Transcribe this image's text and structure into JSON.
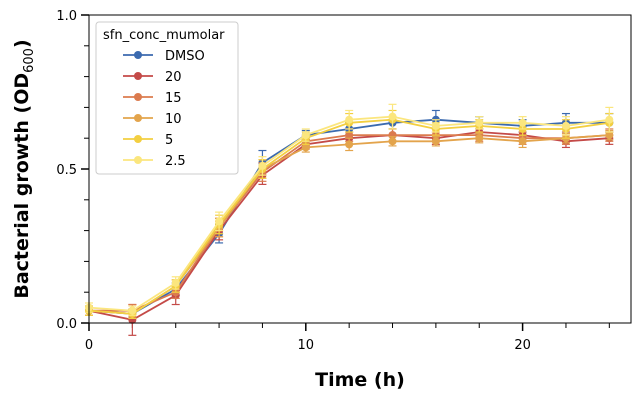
{
  "chart_data": {
    "type": "line",
    "xlabel": "Time (h)",
    "ylabel_main": "Bacterial growth (OD",
    "ylabel_sub": "600",
    "ylabel_close": ")",
    "xlim": [
      0,
      25
    ],
    "ylim": [
      0,
      1
    ],
    "x_major_ticks": [
      0,
      10,
      20
    ],
    "x_minor_ticks": [
      2,
      4,
      6,
      8,
      12,
      14,
      16,
      18,
      22,
      24
    ],
    "y_major_ticks": [
      0,
      0.5,
      1
    ],
    "y_minor_ticks": [
      0.1,
      0.2,
      0.3,
      0.4,
      0.6,
      0.7,
      0.8,
      0.9
    ],
    "x_tick_labels": [
      "0",
      "10",
      "20"
    ],
    "y_tick_labels": [
      "0.0",
      "0.5",
      "1.0"
    ],
    "legend_title": "sfn_conc_mumolar",
    "legend_position": "top-left",
    "x": [
      0,
      2,
      4,
      6,
      8,
      10,
      12,
      14,
      16,
      18,
      20,
      22,
      24
    ],
    "series": [
      {
        "name": "DMSO",
        "color": "#3b6aaf",
        "values": [
          0.04,
          0.03,
          0.11,
          0.29,
          0.52,
          0.61,
          0.63,
          0.65,
          0.66,
          0.65,
          0.64,
          0.65,
          0.65
        ],
        "errors": [
          0.015,
          0.015,
          0.02,
          0.03,
          0.04,
          0.015,
          0.02,
          0.02,
          0.03,
          0.02,
          0.02,
          0.03,
          0.03
        ]
      },
      {
        "name": "20",
        "color": "#c44a48",
        "values": [
          0.04,
          0.01,
          0.09,
          0.3,
          0.48,
          0.58,
          0.6,
          0.61,
          0.6,
          0.62,
          0.61,
          0.59,
          0.6
        ],
        "errors": [
          0.015,
          0.05,
          0.03,
          0.03,
          0.03,
          0.015,
          0.02,
          0.02,
          0.02,
          0.02,
          0.02,
          0.02,
          0.02
        ]
      },
      {
        "name": "15",
        "color": "#db7b4e",
        "values": [
          0.04,
          0.04,
          0.1,
          0.31,
          0.49,
          0.59,
          0.61,
          0.61,
          0.61,
          0.61,
          0.6,
          0.6,
          0.61
        ],
        "errors": [
          0.015,
          0.02,
          0.02,
          0.03,
          0.03,
          0.015,
          0.02,
          0.02,
          0.02,
          0.02,
          0.02,
          0.02,
          0.02
        ]
      },
      {
        "name": "10",
        "color": "#e3a44c",
        "values": [
          0.04,
          0.03,
          0.12,
          0.31,
          0.5,
          0.57,
          0.58,
          0.59,
          0.59,
          0.6,
          0.59,
          0.6,
          0.61
        ],
        "errors": [
          0.015,
          0.015,
          0.02,
          0.03,
          0.03,
          0.015,
          0.02,
          0.015,
          0.015,
          0.015,
          0.02,
          0.015,
          0.015
        ]
      },
      {
        "name": "5",
        "color": "#f3cf41",
        "values": [
          0.04,
          0.03,
          0.12,
          0.32,
          0.5,
          0.6,
          0.65,
          0.66,
          0.63,
          0.64,
          0.63,
          0.63,
          0.65
        ],
        "errors": [
          0.015,
          0.015,
          0.02,
          0.03,
          0.03,
          0.02,
          0.03,
          0.03,
          0.02,
          0.02,
          0.02,
          0.03,
          0.03
        ]
      },
      {
        "name": "2.5",
        "color": "#fbe67e",
        "values": [
          0.05,
          0.04,
          0.13,
          0.33,
          0.51,
          0.61,
          0.66,
          0.67,
          0.64,
          0.65,
          0.65,
          0.64,
          0.66
        ],
        "errors": [
          0.015,
          0.015,
          0.02,
          0.03,
          0.03,
          0.02,
          0.03,
          0.04,
          0.02,
          0.02,
          0.02,
          0.03,
          0.04
        ]
      }
    ]
  }
}
